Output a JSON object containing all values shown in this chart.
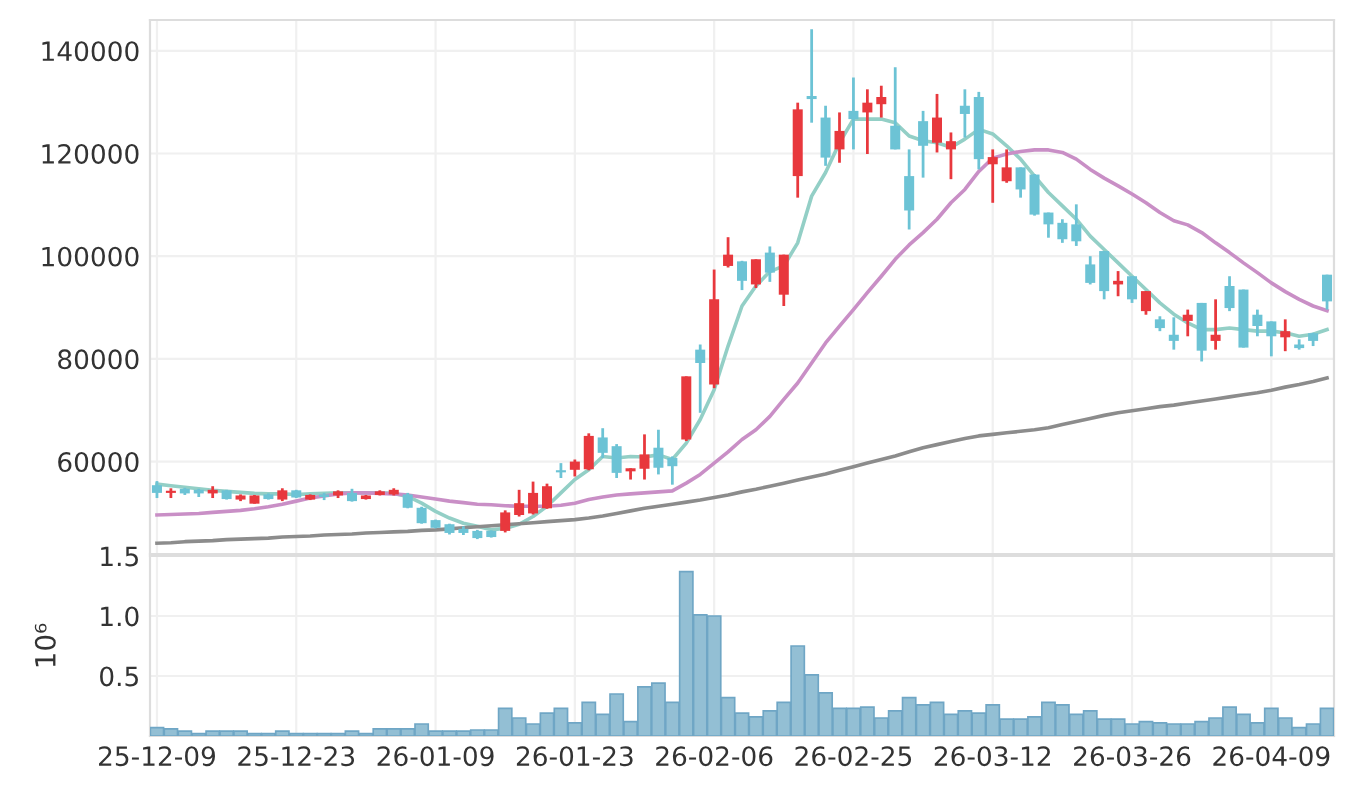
{
  "chart_data": [
    {
      "type": "candlestick",
      "tick_labels": "y",
      "grid": true,
      "categories": [
        "25-12-09",
        null,
        null,
        null,
        null,
        null,
        null,
        null,
        null,
        null,
        "25-12-23",
        null,
        null,
        null,
        null,
        null,
        null,
        null,
        null,
        null,
        "26-01-09",
        null,
        null,
        null,
        null,
        null,
        null,
        null,
        null,
        null,
        "26-01-23",
        null,
        null,
        null,
        null,
        null,
        null,
        null,
        null,
        null,
        "26-02-06",
        null,
        null,
        null,
        null,
        null,
        null,
        null,
        null,
        null,
        "26-02-25",
        null,
        null,
        null,
        null,
        null,
        null,
        null,
        null,
        null,
        "26-03-12",
        null,
        null,
        null,
        null,
        null,
        null,
        null,
        null,
        null,
        "26-03-26",
        null,
        null,
        null,
        null,
        null,
        null,
        null,
        null,
        null,
        "26-04-09",
        null,
        null,
        null,
        null
      ],
      "ylim": [
        42000,
        146000
      ],
      "yticks": [
        60000,
        80000,
        100000,
        120000,
        140000
      ],
      "ohlc": [
        [
          55400,
          56200,
          52900,
          53900
        ],
        [
          53900,
          54800,
          52900,
          54000
        ],
        [
          54700,
          54900,
          53500,
          53800
        ],
        [
          54500,
          54700,
          53100,
          53800
        ],
        [
          53800,
          55200,
          52900,
          54500
        ],
        [
          54400,
          54500,
          52600,
          52700
        ],
        [
          52600,
          53600,
          52300,
          53400
        ],
        [
          51800,
          53500,
          51800,
          53400
        ],
        [
          53600,
          53800,
          52600,
          52700
        ],
        [
          52600,
          54800,
          52300,
          54400
        ],
        [
          54400,
          54500,
          52900,
          53000
        ],
        [
          52600,
          53600,
          52500,
          53500
        ],
        [
          53600,
          53900,
          52500,
          53100
        ],
        [
          53400,
          54400,
          52900,
          54200
        ],
        [
          53900,
          54700,
          52200,
          52300
        ],
        [
          52700,
          53500,
          52600,
          53400
        ],
        [
          53500,
          54400,
          53400,
          54200
        ],
        [
          53600,
          54800,
          53400,
          54500
        ],
        [
          53600,
          53900,
          50900,
          51000
        ],
        [
          51000,
          51200,
          47900,
          48000
        ],
        [
          48600,
          48700,
          47000,
          47100
        ],
        [
          47800,
          47900,
          45800,
          46100
        ],
        [
          46900,
          47400,
          45700,
          46100
        ],
        [
          46500,
          46700,
          44900,
          45100
        ],
        [
          46500,
          46600,
          45200,
          45300
        ],
        [
          46500,
          50500,
          46200,
          50100
        ],
        [
          49600,
          54500,
          49300,
          51900
        ],
        [
          49900,
          56100,
          49700,
          53900
        ],
        [
          50900,
          55700,
          50800,
          55200
        ],
        [
          58200,
          59700,
          56800,
          57900
        ],
        [
          58400,
          60400,
          57100,
          60000
        ],
        [
          58500,
          65500,
          58300,
          65000
        ],
        [
          64700,
          66500,
          60700,
          61700
        ],
        [
          63000,
          63400,
          56800,
          57800
        ],
        [
          58100,
          58700,
          56500,
          58700
        ],
        [
          58600,
          65300,
          56500,
          61400
        ],
        [
          62700,
          66200,
          57500,
          58800
        ],
        [
          60700,
          61000,
          55500,
          59100
        ],
        [
          64300,
          76600,
          64000,
          76600
        ],
        [
          81800,
          82800,
          69500,
          79200
        ],
        [
          75000,
          97400,
          74300,
          91600
        ],
        [
          98100,
          103700,
          97800,
          100300
        ],
        [
          99000,
          99100,
          93400,
          95200
        ],
        [
          94500,
          99400,
          93800,
          99400
        ],
        [
          100700,
          101900,
          95000,
          96800
        ],
        [
          92500,
          100300,
          90300,
          100300
        ],
        [
          115600,
          129900,
          111400,
          128600
        ],
        [
          131200,
          144200,
          126000,
          130600
        ],
        [
          127000,
          129300,
          117600,
          119200
        ],
        [
          120800,
          128000,
          118200,
          124400
        ],
        [
          128300,
          134800,
          120800,
          126700
        ],
        [
          128000,
          132500,
          119900,
          129900
        ],
        [
          129600,
          133200,
          127000,
          131000
        ],
        [
          125400,
          136800,
          120800,
          120800
        ],
        [
          115600,
          120800,
          105200,
          108900
        ],
        [
          126300,
          128300,
          115300,
          121500
        ],
        [
          122100,
          131600,
          120200,
          127000
        ],
        [
          120800,
          124100,
          115000,
          122400
        ],
        [
          129300,
          132500,
          123100,
          127700
        ],
        [
          131000,
          132000,
          116900,
          118900
        ],
        [
          117900,
          120800,
          110400,
          119300
        ],
        [
          114600,
          120800,
          114300,
          117300
        ],
        [
          117300,
          117300,
          111400,
          113000
        ],
        [
          115900,
          116000,
          107900,
          108100
        ],
        [
          108500,
          108500,
          103600,
          106200
        ],
        [
          106500,
          107200,
          102600,
          103300
        ],
        [
          106200,
          110100,
          102000,
          102900
        ],
        [
          98400,
          100000,
          94500,
          94800
        ],
        [
          101000,
          101000,
          91600,
          93200
        ],
        [
          94500,
          97100,
          92200,
          95200
        ],
        [
          96100,
          96100,
          90900,
          91600
        ],
        [
          89300,
          93200,
          88600,
          93200
        ],
        [
          87700,
          88300,
          85400,
          86000
        ],
        [
          84700,
          88100,
          81800,
          83500
        ],
        [
          87400,
          89600,
          84400,
          88600
        ],
        [
          90900,
          90900,
          79500,
          81600
        ],
        [
          83500,
          91600,
          81800,
          84700
        ],
        [
          94200,
          96100,
          89300,
          89900
        ],
        [
          93500,
          93500,
          82200,
          82200
        ],
        [
          88600,
          89600,
          84400,
          86400
        ],
        [
          87300,
          87300,
          80500,
          84400
        ],
        [
          84200,
          87700,
          81500,
          85400
        ],
        [
          82800,
          83800,
          81800,
          82100
        ],
        [
          85000,
          85100,
          82500,
          83500
        ],
        [
          96400,
          96400,
          89600,
          91200
        ]
      ],
      "colors": [
        "#6cc3d5",
        "#e8383d",
        "#6cc3d5",
        "#6cc3d5",
        "#e8383d",
        "#6cc3d5",
        "#e8383d",
        "#e8383d",
        "#6cc3d5",
        "#e8383d",
        "#6cc3d5",
        "#e8383d",
        "#6cc3d5",
        "#e8383d",
        "#6cc3d5",
        "#e8383d",
        "#e8383d",
        "#e8383d",
        "#6cc3d5",
        "#6cc3d5",
        "#6cc3d5",
        "#6cc3d5",
        "#6cc3d5",
        "#6cc3d5",
        "#6cc3d5",
        "#e8383d",
        "#e8383d",
        "#e8383d",
        "#e8383d",
        "#6cc3d5",
        "#e8383d",
        "#e8383d",
        "#6cc3d5",
        "#6cc3d5",
        "#e8383d",
        "#e8383d",
        "#6cc3d5",
        "#6cc3d5",
        "#e8383d",
        "#6cc3d5",
        "#e8383d",
        "#e8383d",
        "#6cc3d5",
        "#e8383d",
        "#6cc3d5",
        "#e8383d",
        "#e8383d",
        "#6cc3d5",
        "#6cc3d5",
        "#e8383d",
        "#6cc3d5",
        "#e8383d",
        "#e8383d",
        "#6cc3d5",
        "#6cc3d5",
        "#6cc3d5",
        "#e8383d",
        "#e8383d",
        "#6cc3d5",
        "#6cc3d5",
        "#e8383d",
        "#e8383d",
        "#6cc3d5",
        "#6cc3d5",
        "#6cc3d5",
        "#6cc3d5",
        "#6cc3d5",
        "#6cc3d5",
        "#6cc3d5",
        "#e8383d",
        "#6cc3d5",
        "#e8383d",
        "#6cc3d5",
        "#6cc3d5",
        "#e8383d",
        "#6cc3d5",
        "#e8383d",
        "#6cc3d5",
        "#6cc3d5",
        "#6cc3d5",
        "#6cc3d5",
        "#e8383d",
        "#6cc3d5",
        "#6cc3d5",
        "#6cc3d5"
      ],
      "series": [
        {
          "type": "line",
          "color": "#93cfc6",
          "values": [
            55600,
            55300,
            55000,
            54700,
            54400,
            54200,
            54000,
            53800,
            53700,
            53700,
            53600,
            53700,
            53800,
            53900,
            53900,
            53900,
            53900,
            53800,
            53200,
            51900,
            50300,
            49000,
            48000,
            47400,
            46700,
            47000,
            47800,
            49300,
            51300,
            53900,
            56500,
            58400,
            61000,
            60700,
            61000,
            60900,
            61300,
            60400,
            63600,
            68200,
            74000,
            82500,
            90300,
            94200,
            97000,
            98100,
            102600,
            111700,
            116300,
            122100,
            126700,
            126700,
            126700,
            126000,
            123400,
            122500,
            122100,
            121200,
            122800,
            124700,
            123800,
            121500,
            118900,
            115600,
            112400,
            109800,
            107200,
            103900,
            101300,
            98700,
            96100,
            93500,
            90900,
            88700,
            87000,
            85700,
            85700,
            86000,
            85700,
            85400,
            85400,
            85100,
            84400,
            84800,
            85700
          ]
        },
        {
          "type": "line",
          "color": "#c98fc6",
          "values": [
            49600,
            49700,
            49800,
            49900,
            50100,
            50300,
            50500,
            50800,
            51200,
            51700,
            52300,
            52900,
            53300,
            53700,
            53900,
            53900,
            53800,
            53700,
            53500,
            53100,
            52700,
            52300,
            52000,
            51700,
            51600,
            51400,
            51300,
            51300,
            51300,
            51500,
            51900,
            52600,
            53100,
            53500,
            53700,
            53900,
            54100,
            54300,
            55800,
            57500,
            59700,
            61900,
            64300,
            66200,
            68800,
            72100,
            75300,
            79200,
            83100,
            86400,
            89600,
            92900,
            96100,
            99400,
            102200,
            104600,
            107200,
            110400,
            113000,
            116500,
            119100,
            119900,
            120400,
            120700,
            120700,
            120200,
            118900,
            116900,
            115200,
            113700,
            112100,
            110400,
            108500,
            106900,
            106100,
            104600,
            102600,
            100700,
            98700,
            96800,
            94800,
            93100,
            91600,
            90300,
            89400
          ]
        },
        {
          "type": "line",
          "color": "#8c8c8c",
          "values": [
            44100,
            44200,
            44400,
            44500,
            44600,
            44800,
            44900,
            45000,
            45100,
            45300,
            45400,
            45500,
            45700,
            45800,
            45900,
            46100,
            46200,
            46300,
            46400,
            46600,
            46700,
            46900,
            47100,
            47300,
            47500,
            47700,
            47900,
            48100,
            48300,
            48500,
            48700,
            49000,
            49400,
            49900,
            50400,
            50900,
            51300,
            51700,
            52100,
            52500,
            53000,
            53500,
            54100,
            54600,
            55200,
            55800,
            56400,
            57000,
            57600,
            58300,
            59000,
            59700,
            60400,
            61100,
            61900,
            62700,
            63300,
            63900,
            64500,
            65000,
            65300,
            65600,
            65900,
            66200,
            66600,
            67200,
            67800,
            68400,
            69000,
            69500,
            69900,
            70300,
            70700,
            71000,
            71400,
            71800,
            72200,
            72600,
            73000,
            73400,
            73900,
            74500,
            75000,
            75600,
            76300
          ]
        }
      ]
    },
    {
      "type": "bar",
      "ylabel": "10⁶",
      "grid": true,
      "color": "#93bfd4",
      "ylim": [
        0,
        1.5
      ],
      "yticks": [
        0.5,
        {
          "value": 1,
          "label": "1.0"
        },
        1.5
      ],
      "values": [
        0.07,
        0.06,
        0.04,
        0.02,
        0.04,
        0.04,
        0.04,
        0.02,
        0.02,
        0.04,
        0.02,
        0.02,
        0.02,
        0.02,
        0.04,
        0.02,
        0.06,
        0.06,
        0.06,
        0.1,
        0.04,
        0.04,
        0.04,
        0.05,
        0.05,
        0.23,
        0.15,
        0.1,
        0.19,
        0.23,
        0.11,
        0.28,
        0.18,
        0.35,
        0.12,
        0.41,
        0.44,
        0.28,
        1.37,
        1.01,
        1.0,
        0.32,
        0.19,
        0.16,
        0.21,
        0.28,
        0.75,
        0.51,
        0.36,
        0.23,
        0.23,
        0.24,
        0.15,
        0.21,
        0.32,
        0.26,
        0.28,
        0.18,
        0.21,
        0.19,
        0.26,
        0.14,
        0.14,
        0.16,
        0.28,
        0.26,
        0.18,
        0.21,
        0.14,
        0.14,
        0.1,
        0.12,
        0.11,
        0.1,
        0.1,
        0.12,
        0.15,
        0.24,
        0.18,
        0.11,
        0.23,
        0.15,
        0.07,
        0.1,
        0.23
      ]
    }
  ]
}
